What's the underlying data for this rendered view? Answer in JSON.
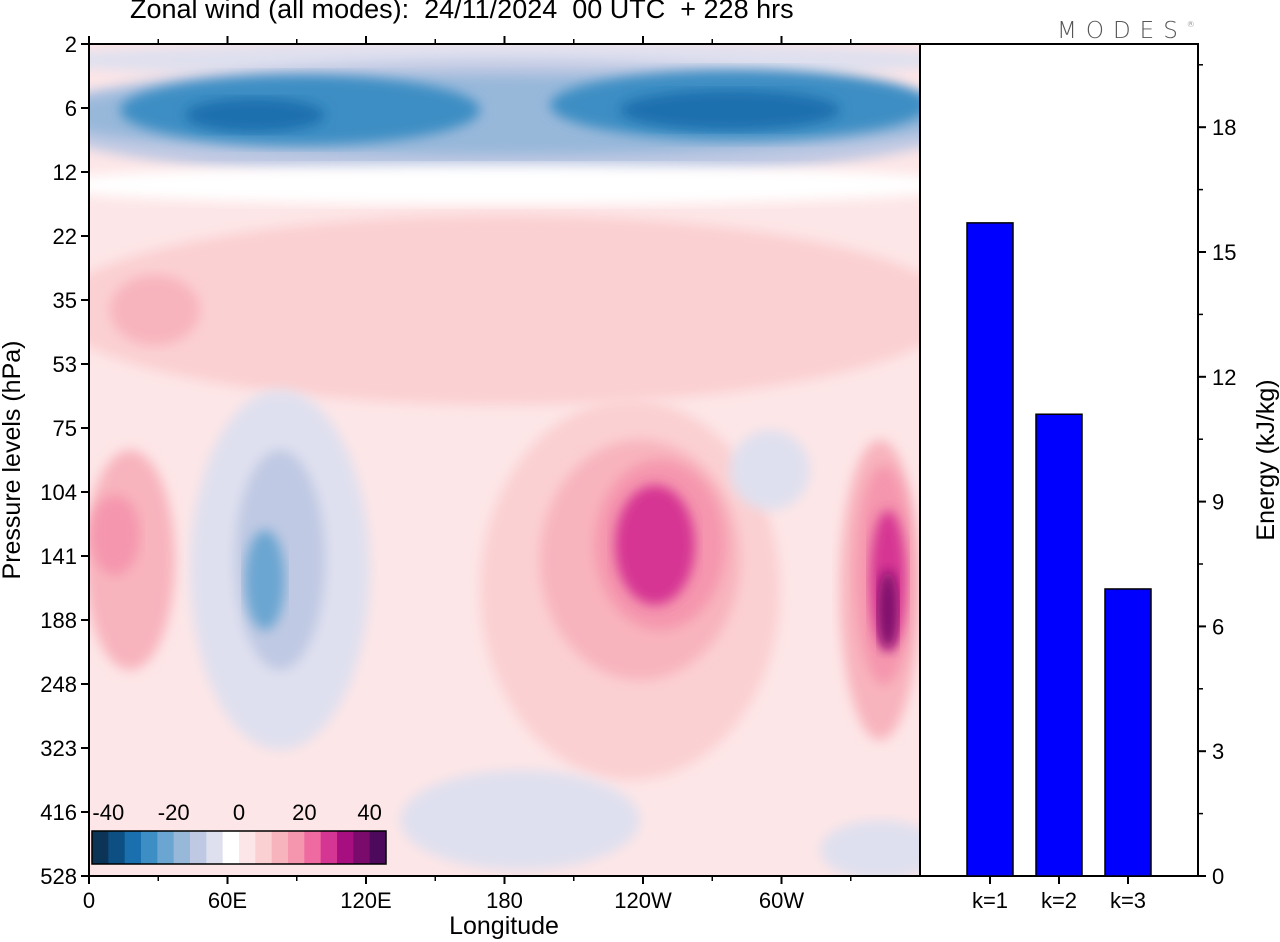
{
  "title": "Zonal wind (all modes):  24/11/2024  00 UTC  + 228 hrs",
  "logo": {
    "text": "MODES",
    "mark": "®"
  },
  "chart_data": [
    {
      "type": "heatmap",
      "name": "zonal-wind-contour",
      "xlabel": "Longitude",
      "ylabel": "Pressure levels (hPa)",
      "x_ticks": [
        "0",
        "60E",
        "120E",
        "180",
        "120W",
        "60W"
      ],
      "x_tick_values": [
        0,
        60,
        120,
        180,
        240,
        300
      ],
      "xlim": [
        0,
        360
      ],
      "y_ticks": [
        "2",
        "6",
        "12",
        "22",
        "35",
        "53",
        "75",
        "104",
        "141",
        "188",
        "248",
        "323",
        "416",
        "528"
      ],
      "colorbar": {
        "labels": [
          "-40",
          "-20",
          "0",
          "20",
          "40"
        ],
        "levels": [
          -40,
          -20,
          0,
          20,
          40
        ],
        "colors": [
          "#0b3457",
          "#0d4f82",
          "#1a6fae",
          "#3d8ec4",
          "#6aa6d1",
          "#98b8da",
          "#bfc9e3",
          "#dfe0ef",
          "#ffffff",
          "#fde6e7",
          "#fbd0d2",
          "#f8b4bd",
          "#f596ae",
          "#ee6aa0",
          "#d63693",
          "#a70e7f",
          "#7a0a6b",
          "#4d0a5c"
        ]
      },
      "features": [
        {
          "label": "easterly jet stratosphere",
          "lon_range": [
            0,
            360
          ],
          "level": "6",
          "value": -30
        },
        {
          "label": "westerly maximum",
          "lon_center": 250,
          "level": "141",
          "value": 25
        },
        {
          "label": "westerly maximum",
          "lon_center": 340,
          "level": "141",
          "value": 35
        },
        {
          "label": "easterly minimum",
          "lon_center": 70,
          "level": "141",
          "value": -20
        }
      ]
    },
    {
      "type": "bar",
      "name": "energy-bars",
      "categories": [
        "k=1",
        "k=2",
        "k=3"
      ],
      "values": [
        15.7,
        11.1,
        6.9
      ],
      "ylabel": "Energy (kJ/kg)",
      "ylim": [
        0,
        20
      ],
      "y_ticks": [
        "0",
        "3",
        "6",
        "9",
        "12",
        "15",
        "18"
      ],
      "bar_color": "#0000ff"
    }
  ]
}
